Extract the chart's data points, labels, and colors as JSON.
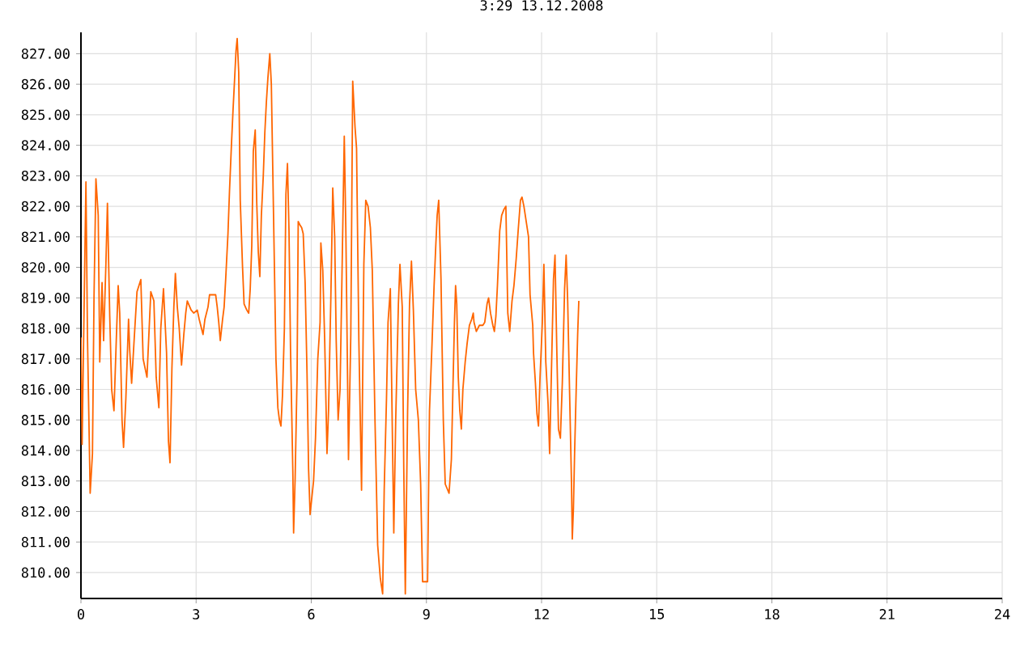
{
  "chart_data": {
    "type": "line",
    "title": "3:29 13.12.2008",
    "x": [
      0.0,
      0.03,
      0.13,
      0.17,
      0.24,
      0.3,
      0.34,
      0.39,
      0.45,
      0.49,
      0.55,
      0.59,
      0.65,
      0.69,
      0.75,
      0.8,
      0.86,
      0.92,
      0.97,
      1.01,
      1.07,
      1.11,
      1.17,
      1.24,
      1.27,
      1.32,
      1.38,
      1.46,
      1.56,
      1.62,
      1.72,
      1.82,
      1.9,
      1.96,
      2.03,
      2.08,
      2.15,
      2.23,
      2.28,
      2.32,
      2.37,
      2.42,
      2.46,
      2.51,
      2.56,
      2.62,
      2.68,
      2.73,
      2.77,
      2.87,
      2.94,
      3.03,
      3.08,
      3.18,
      3.23,
      3.31,
      3.35,
      3.51,
      3.55,
      3.59,
      3.63,
      3.69,
      3.73,
      3.77,
      3.83,
      3.87,
      3.92,
      3.96,
      4.0,
      4.04,
      4.07,
      4.11,
      4.15,
      4.21,
      4.25,
      4.32,
      4.37,
      4.41,
      4.45,
      4.49,
      4.54,
      4.58,
      4.62,
      4.66,
      4.7,
      4.75,
      4.79,
      4.83,
      4.87,
      4.92,
      4.96,
      5.0,
      5.04,
      5.08,
      5.13,
      5.17,
      5.21,
      5.25,
      5.3,
      5.34,
      5.38,
      5.42,
      5.46,
      5.52,
      5.54,
      5.58,
      5.63,
      5.66,
      5.7,
      5.75,
      5.79,
      5.84,
      5.89,
      5.93,
      5.97,
      6.01,
      6.06,
      6.11,
      6.17,
      6.23,
      6.25,
      6.3,
      6.35,
      6.41,
      6.45,
      6.51,
      6.56,
      6.61,
      6.65,
      6.7,
      6.75,
      6.8,
      6.86,
      6.9,
      6.97,
      7.03,
      7.08,
      7.14,
      7.18,
      7.24,
      7.31,
      7.37,
      7.42,
      7.48,
      7.54,
      7.59,
      7.66,
      7.73,
      7.8,
      7.86,
      7.9,
      7.96,
      8.0,
      8.06,
      8.11,
      8.15,
      8.2,
      8.27,
      8.31,
      8.37,
      8.41,
      8.45,
      8.51,
      8.56,
      8.61,
      8.66,
      8.72,
      8.79,
      8.85,
      8.9,
      9.03,
      9.08,
      9.14,
      9.2,
      9.24,
      9.28,
      9.32,
      9.38,
      9.44,
      9.49,
      9.59,
      9.65,
      9.69,
      9.73,
      9.76,
      9.79,
      9.83,
      9.87,
      9.91,
      9.95,
      10.01,
      10.06,
      10.12,
      10.18,
      10.22,
      10.24,
      10.3,
      10.38,
      10.47,
      10.52,
      10.58,
      10.62,
      10.67,
      10.73,
      10.77,
      10.81,
      10.85,
      10.91,
      10.96,
      11.02,
      11.07,
      11.12,
      11.17,
      11.23,
      11.28,
      11.34,
      11.39,
      11.45,
      11.49,
      11.54,
      11.6,
      11.66,
      11.7,
      11.77,
      11.79,
      11.84,
      11.88,
      11.92,
      11.96,
      12.02,
      12.06,
      12.11,
      12.17,
      12.21,
      12.25,
      12.31,
      12.35,
      12.4,
      12.44,
      12.49,
      12.54,
      12.6,
      12.64,
      12.68,
      12.73,
      12.78,
      12.8,
      12.83,
      12.86,
      12.9,
      12.94,
      12.97
    ],
    "series": [
      {
        "color": "#ff6600",
        "values": [
          817.7,
          814.2,
          822.8,
          817.7,
          812.6,
          813.9,
          819.0,
          822.9,
          821.7,
          816.9,
          819.5,
          817.6,
          820.1,
          822.1,
          818.4,
          816.0,
          815.3,
          817.6,
          819.4,
          818.5,
          815.0,
          814.1,
          815.7,
          818.3,
          817.3,
          816.2,
          817.5,
          819.2,
          819.6,
          817.0,
          816.4,
          819.2,
          818.9,
          816.4,
          815.4,
          818.0,
          819.3,
          817.2,
          814.3,
          813.6,
          816.7,
          818.7,
          819.8,
          818.7,
          818.0,
          816.8,
          817.8,
          818.5,
          818.9,
          818.6,
          818.5,
          818.6,
          818.3,
          817.8,
          818.3,
          818.7,
          819.1,
          819.1,
          818.7,
          818.2,
          817.6,
          818.3,
          818.7,
          819.6,
          821.1,
          822.5,
          824.0,
          825.1,
          826.1,
          827.1,
          827.5,
          826.4,
          822.2,
          820.0,
          818.8,
          818.6,
          818.5,
          819.3,
          820.7,
          823.8,
          824.5,
          822.1,
          820.5,
          819.7,
          821.7,
          823.0,
          824.4,
          825.4,
          826.2,
          827.0,
          826.0,
          823.0,
          820.0,
          817.0,
          815.4,
          815.0,
          814.8,
          815.8,
          818.0,
          822.4,
          823.4,
          821.2,
          817.3,
          813.3,
          811.3,
          813.1,
          816.4,
          821.5,
          821.4,
          821.3,
          821.1,
          819.5,
          816.5,
          813.4,
          811.9,
          812.4,
          813.0,
          814.4,
          817.0,
          818.2,
          820.8,
          819.9,
          817.6,
          813.9,
          815.3,
          819.0,
          822.6,
          821.0,
          817.6,
          815.0,
          816.0,
          819.7,
          824.3,
          821.3,
          813.7,
          817.8,
          826.1,
          824.6,
          823.9,
          817.6,
          812.7,
          820.1,
          822.2,
          822.0,
          821.3,
          819.9,
          815.0,
          810.9,
          809.8,
          809.3,
          812.7,
          815.7,
          818.2,
          819.3,
          814.8,
          811.3,
          815.0,
          818.8,
          820.1,
          818.7,
          813.4,
          809.3,
          815.3,
          818.8,
          820.2,
          818.6,
          816.0,
          815.0,
          812.9,
          809.7,
          809.7,
          815.3,
          817.3,
          819.4,
          820.6,
          821.7,
          822.2,
          819.6,
          815.0,
          812.9,
          812.6,
          813.7,
          816.0,
          818.2,
          819.4,
          818.8,
          816.4,
          815.3,
          814.7,
          816.0,
          816.9,
          817.5,
          818.1,
          818.3,
          818.5,
          818.2,
          817.9,
          818.1,
          818.1,
          818.2,
          818.8,
          819.0,
          818.5,
          818.1,
          817.9,
          818.4,
          819.4,
          821.2,
          821.7,
          821.9,
          822.0,
          818.5,
          817.9,
          818.9,
          819.4,
          820.3,
          821.2,
          822.2,
          822.3,
          822.0,
          821.5,
          821.0,
          819.1,
          818.1,
          817.2,
          816.2,
          815.2,
          814.8,
          816.4,
          818.2,
          820.1,
          816.9,
          815.5,
          813.9,
          816.2,
          819.6,
          820.4,
          817.1,
          814.7,
          814.4,
          816.2,
          819.3,
          820.4,
          818.9,
          815.9,
          812.9,
          811.1,
          812.1,
          813.9,
          815.9,
          817.8,
          818.9
        ]
      }
    ],
    "xlim": [
      0,
      24
    ],
    "ylim": [
      809.15,
      827.7
    ],
    "xticks": [
      0,
      3,
      6,
      9,
      12,
      15,
      18,
      21,
      24
    ],
    "yticks": [
      {
        "value": 810,
        "label": "810.00"
      },
      {
        "value": 811,
        "label": "811.00"
      },
      {
        "value": 812,
        "label": "812.00"
      },
      {
        "value": 813,
        "label": "813.00"
      },
      {
        "value": 814,
        "label": "814.00"
      },
      {
        "value": 815,
        "label": "815.00"
      },
      {
        "value": 816,
        "label": "816.00"
      },
      {
        "value": 817,
        "label": "817.00"
      },
      {
        "value": 818,
        "label": "818.00"
      },
      {
        "value": 819,
        "label": "819.00"
      },
      {
        "value": 820,
        "label": "820.00"
      },
      {
        "value": 821,
        "label": "821.00"
      },
      {
        "value": 822,
        "label": "822.00"
      },
      {
        "value": 823,
        "label": "823.00"
      },
      {
        "value": 824,
        "label": "824.00"
      },
      {
        "value": 825,
        "label": "825.00"
      },
      {
        "value": 826,
        "label": "826.00"
      },
      {
        "value": 827,
        "label": "827.00"
      }
    ],
    "grid": true,
    "legend": false,
    "marker": "none",
    "line_style": "solid"
  }
}
